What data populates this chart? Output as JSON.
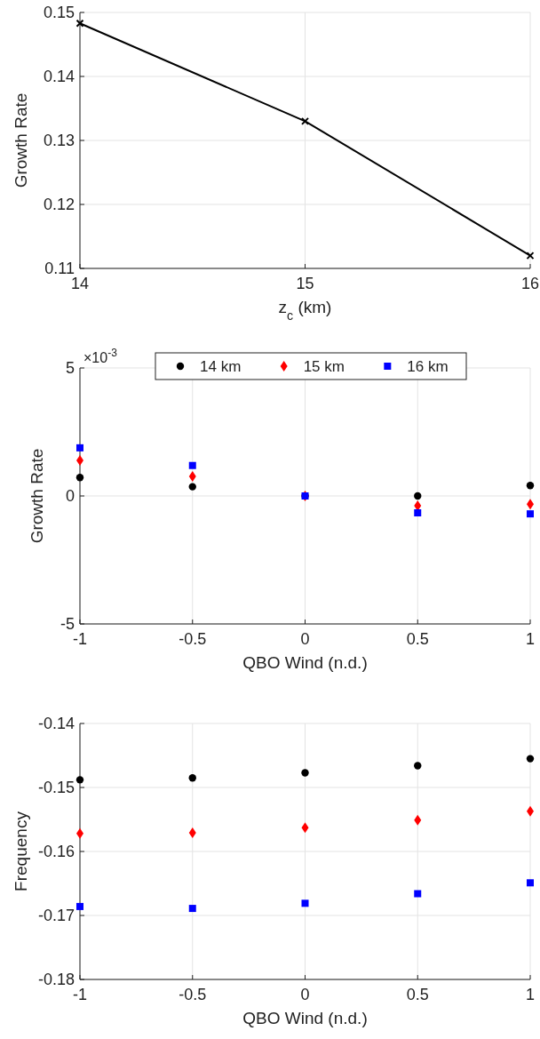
{
  "chart_data": [
    {
      "type": "line",
      "xlabel": "z$_{c}$ (km)",
      "ylabel": "Growth Rate",
      "x": [
        14,
        15,
        16
      ],
      "xlim": [
        14,
        16
      ],
      "xticks": [
        14,
        15,
        16
      ],
      "ylim": [
        0.11,
        0.15
      ],
      "yticks": [
        0.11,
        0.12,
        0.13,
        0.14,
        0.15
      ],
      "grid": true,
      "marker": "cross",
      "line_style": "solid",
      "series": [
        {
          "color": "#000000",
          "values": [
            0.1483,
            0.133,
            0.112
          ]
        }
      ]
    },
    {
      "type": "scatter",
      "xlabel": "QBO Wind (n.d.)",
      "ylabel": "Growth Rate",
      "x": [
        -1,
        -0.5,
        0,
        0.5,
        1
      ],
      "xlim": [
        -1,
        1
      ],
      "xticks": [
        -1,
        -0.5,
        0,
        0.5,
        1
      ],
      "ylim": [
        -5,
        5
      ],
      "yticks": [
        -5,
        0,
        5
      ],
      "grid": true,
      "legend": "top",
      "annotations": [
        "×10$^{-3}$"
      ],
      "series": [
        {
          "name": "14 km",
          "color": "#000000",
          "marker": "circle",
          "values": [
            0.72,
            0.36,
            0,
            0,
            0.41
          ]
        },
        {
          "name": "15 km",
          "color": "#ff0000",
          "marker": "diamond",
          "values": [
            1.39,
            0.76,
            0,
            -0.38,
            -0.32
          ]
        },
        {
          "name": "16 km",
          "color": "#0000ff",
          "marker": "square",
          "values": [
            1.88,
            1.19,
            0,
            -0.66,
            -0.7
          ]
        }
      ]
    },
    {
      "type": "scatter",
      "xlabel": "QBO Wind (n.d.)",
      "ylabel": "Frequency",
      "x": [
        -1,
        -0.5,
        0,
        0.5,
        1
      ],
      "xlim": [
        -1,
        1
      ],
      "xticks": [
        -1,
        -0.5,
        0,
        0.5,
        1
      ],
      "ylim": [
        -0.18,
        -0.14
      ],
      "yticks": [
        -0.18,
        -0.17,
        -0.16,
        -0.15,
        -0.14
      ],
      "grid": true,
      "series": [
        {
          "color": "#000000",
          "marker": "circle",
          "values": [
            -0.1488,
            -0.1485,
            -0.1477,
            -0.1466,
            -0.1455
          ]
        },
        {
          "color": "#ff0000",
          "marker": "diamond",
          "values": [
            -0.1572,
            -0.1571,
            -0.1563,
            -0.1551,
            -0.1537
          ]
        },
        {
          "color": "#0000ff",
          "marker": "square",
          "values": [
            -0.1686,
            -0.1689,
            -0.1681,
            -0.1666,
            -0.1649
          ]
        }
      ]
    }
  ]
}
